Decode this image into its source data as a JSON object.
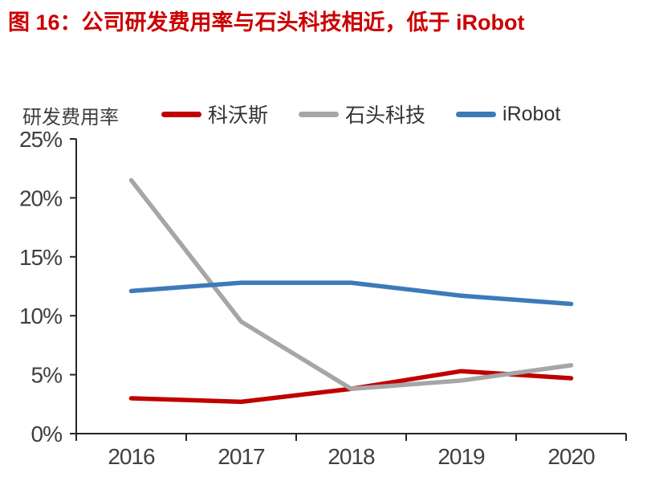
{
  "header": {
    "title": "图 16：公司研发费用率与石头科技相近，低于 iRobot"
  },
  "colors": {
    "title_red": "#CC0000",
    "axis": "#262626",
    "tick_label": "#404040"
  },
  "chart_data": {
    "type": "line",
    "ylabel": "研发费用率",
    "categories": [
      "2016",
      "2017",
      "2018",
      "2019",
      "2020"
    ],
    "series": [
      {
        "name": "科沃斯",
        "color": "#C00000",
        "values": [
          3.0,
          2.7,
          3.8,
          5.3,
          4.7
        ]
      },
      {
        "name": "石头科技",
        "color": "#A6A6A6",
        "values": [
          21.5,
          9.5,
          3.8,
          4.5,
          5.8
        ]
      },
      {
        "name": "iRobot",
        "color": "#3D7AB8",
        "values": [
          12.1,
          12.8,
          12.8,
          11.7,
          11.0
        ]
      }
    ],
    "ylim": [
      0,
      25
    ],
    "ytick_step": 5,
    "ytick_suffix": "%",
    "grid": false,
    "legend_position": "top"
  }
}
